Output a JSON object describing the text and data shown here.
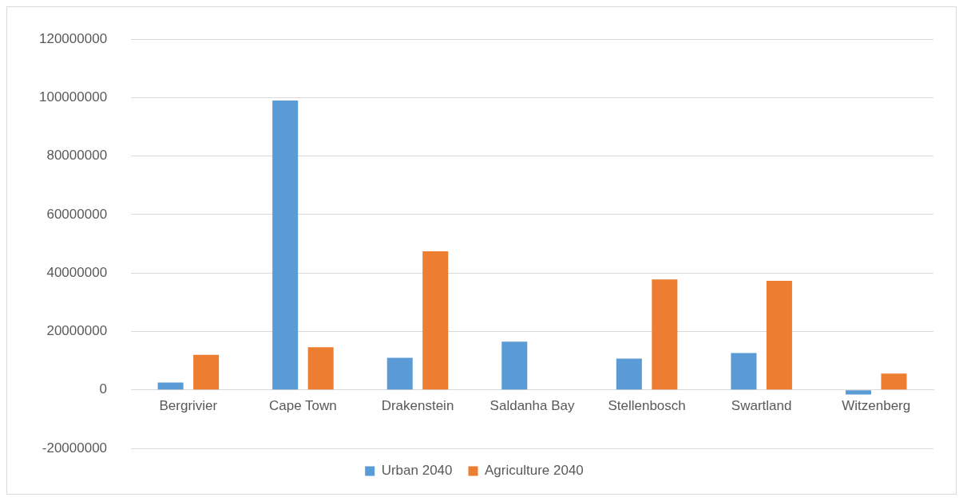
{
  "chart_data": {
    "type": "bar",
    "categories": [
      "Bergrivier",
      "Cape Town",
      "Drakenstein",
      "Saldanha Bay",
      "Stellenbosch",
      "Swartland",
      "Witzenberg"
    ],
    "series": [
      {
        "name": "Urban 2040",
        "color": "#5b9bd5",
        "values": [
          2500000,
          99000000,
          11000000,
          16500000,
          10700000,
          12600000,
          -1600000
        ]
      },
      {
        "name": "Agriculture 2040",
        "color": "#ed7d31",
        "values": [
          12000000,
          14600000,
          47400000,
          0,
          37800000,
          37300000,
          5600000
        ]
      }
    ],
    "ylim": [
      -20000000,
      120000000
    ],
    "yticks": [
      -20000000,
      0,
      20000000,
      40000000,
      60000000,
      80000000,
      100000000,
      120000000
    ],
    "grid": "y",
    "legend": "bottom"
  }
}
